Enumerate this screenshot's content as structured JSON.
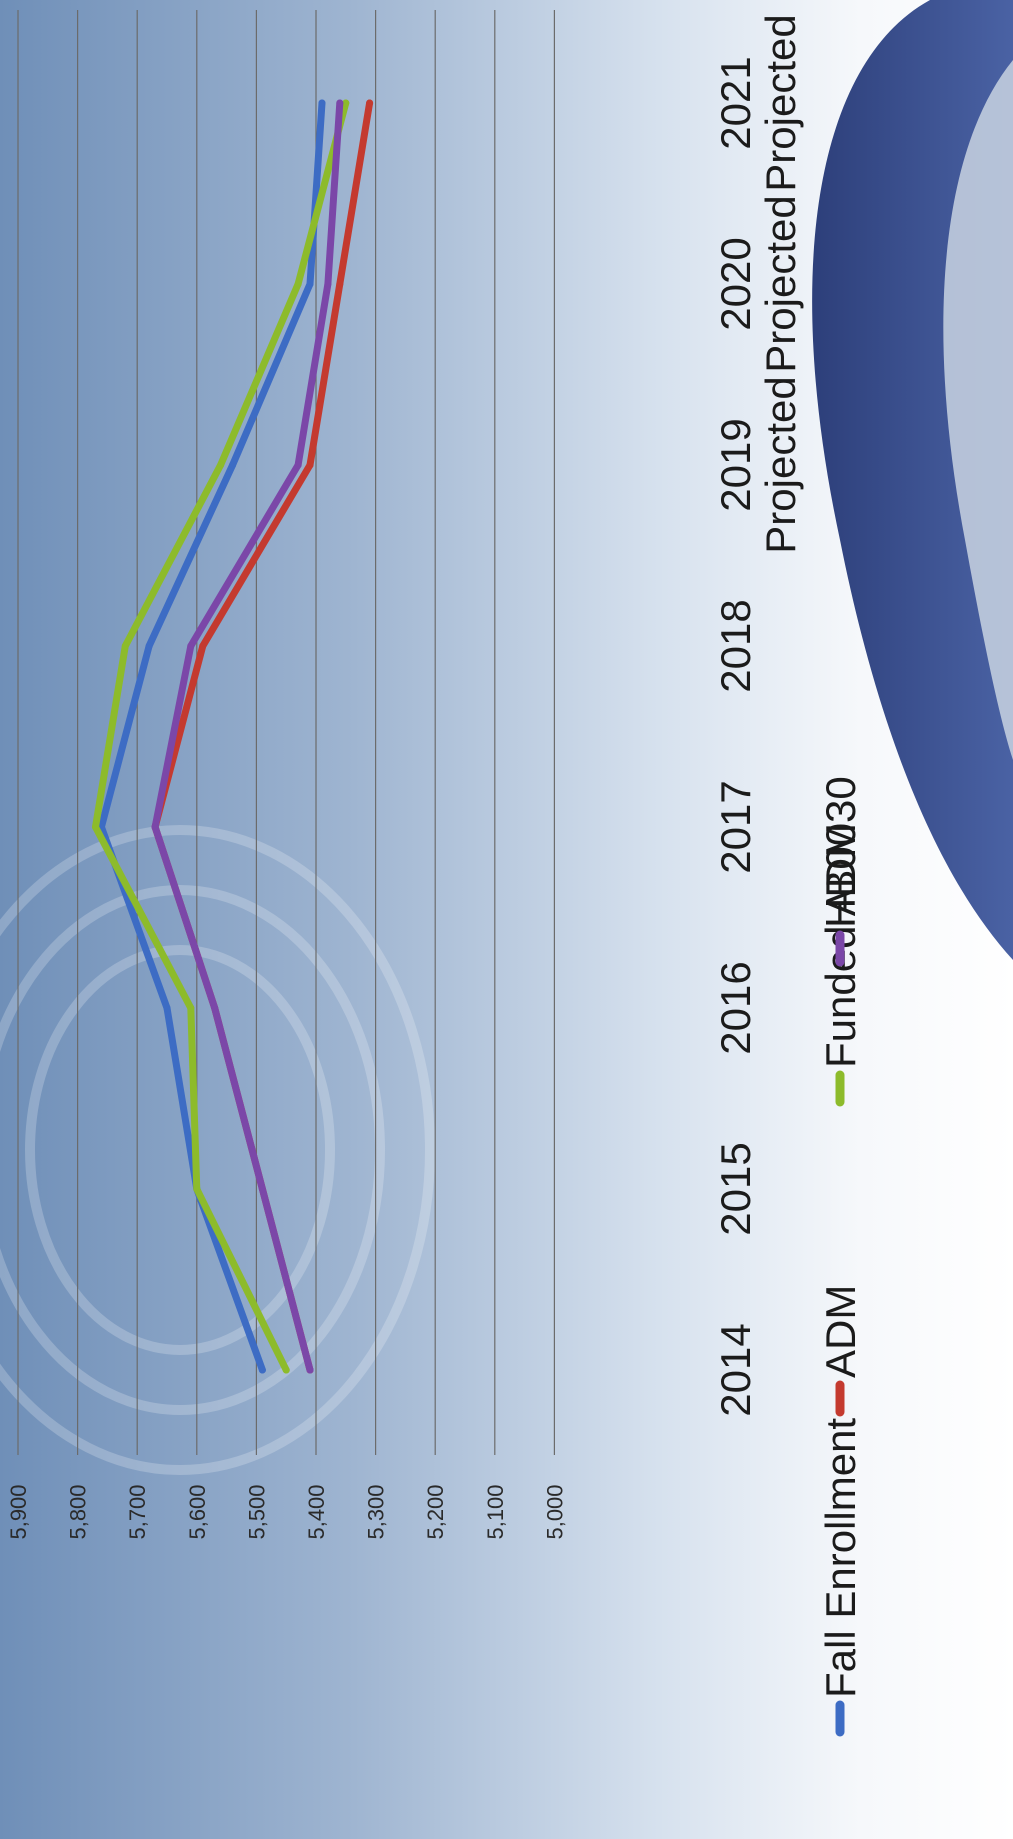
{
  "chart_data": {
    "type": "line",
    "title": "",
    "xlabel": "",
    "ylabel": "",
    "categories": [
      "2014",
      "2015",
      "2016",
      "2017",
      "2018",
      "2019 Projected",
      "2020 Projected",
      "2021 Projected"
    ],
    "category_lines": [
      [
        "2014"
      ],
      [
        "2015"
      ],
      [
        "2016"
      ],
      [
        "2017"
      ],
      [
        "2018"
      ],
      [
        "2019",
        "Projected"
      ],
      [
        "2020",
        "Projected"
      ],
      [
        "2021",
        "Projected"
      ]
    ],
    "y_ticks": [
      "5,900",
      "5,800",
      "5,700",
      "5,600",
      "5,500",
      "5,400",
      "5,300",
      "5,200",
      "5,100",
      "5,000"
    ],
    "ylim": [
      5000,
      5900
    ],
    "grid": true,
    "legend_position": "bottom",
    "series": [
      {
        "name": "Fall Enrollment",
        "color": "#3d6cc4",
        "values": [
          5490,
          5600,
          5650,
          5760,
          5680,
          5540,
          5410,
          5390
        ]
      },
      {
        "name": "ADM",
        "color": "#c43a2f",
        "values": [
          5410,
          5490,
          5570,
          5670,
          5590,
          5410,
          5360,
          5310
        ]
      },
      {
        "name": "Funded ADM",
        "color": "#8dbb2b",
        "values": [
          5450,
          5600,
          5610,
          5770,
          5720,
          5560,
          5430,
          5350
        ]
      },
      {
        "name": "HB0030",
        "color": "#7b47a8",
        "values": [
          5410,
          5490,
          5570,
          5670,
          5610,
          5430,
          5380,
          5360
        ]
      }
    ]
  }
}
